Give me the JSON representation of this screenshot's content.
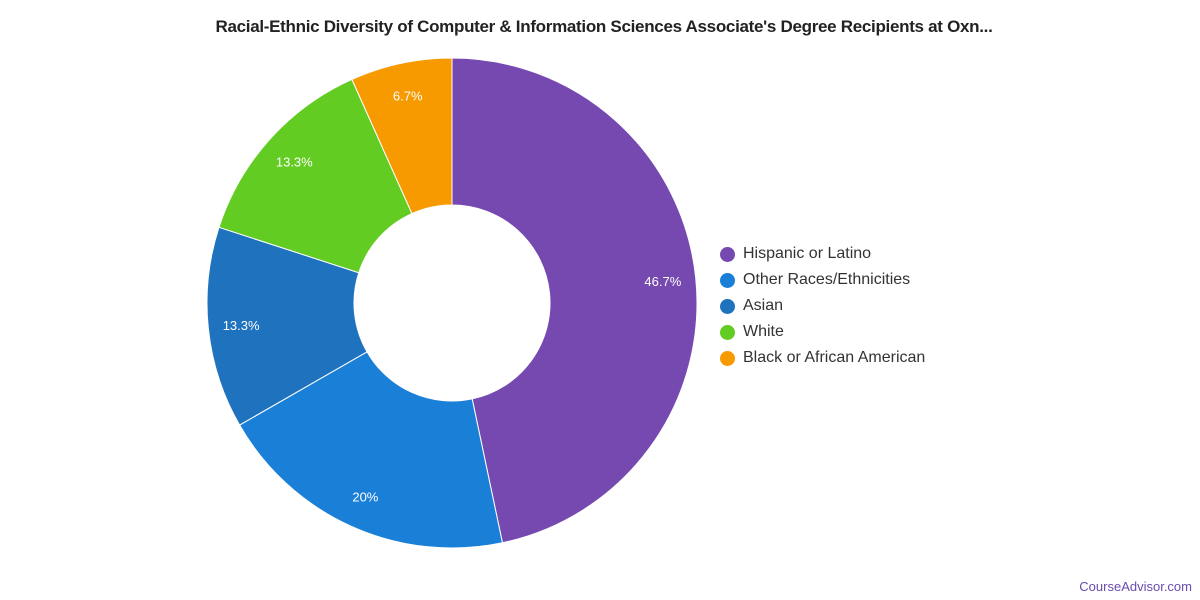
{
  "chart_data": {
    "type": "pie",
    "donut": true,
    "title": "Racial-Ethnic Diversity of Computer & Information Sciences Associate's Degree Recipients at Oxn...",
    "legend_position": "right",
    "slices": [
      {
        "name": "Hispanic or Latino",
        "value": 46.7,
        "label": "46.7%",
        "color": "#7649b0"
      },
      {
        "name": "Other Races/Ethnicities",
        "value": 20,
        "label": "20%",
        "color": "#1a7fd6"
      },
      {
        "name": "Asian",
        "value": 13.3,
        "label": "13.3%",
        "color": "#1f72bd"
      },
      {
        "name": "White",
        "value": 13.3,
        "label": "13.3%",
        "color": "#62cc22"
      },
      {
        "name": "Black or African American",
        "value": 6.7,
        "label": "6.7%",
        "color": "#f79a00"
      }
    ]
  },
  "watermark": "CourseAdvisor.com"
}
